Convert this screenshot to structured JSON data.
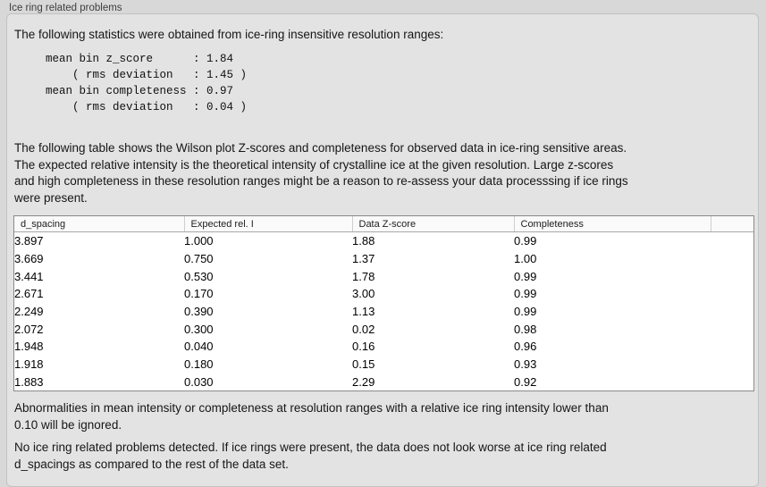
{
  "panel": {
    "title": "Ice ring related problems"
  },
  "intro": "The following statistics were obtained from ice-ring insensitive resolution ranges:",
  "stats_block": "mean bin z_score      : 1.84\n    ( rms deviation   : 1.45 )\nmean bin completeness : 0.97\n    ( rms deviation   : 0.04 )",
  "stats": {
    "mean_bin_z_score": "1.84",
    "z_score_rms_deviation": "1.45",
    "mean_bin_completeness": "0.97",
    "completeness_rms_deviation": "0.04"
  },
  "table_description": "The following table shows the Wilson plot Z-scores and completeness for observed data in ice-ring sensitive areas.\nThe expected relative intensity is the theoretical intensity of crystalline ice at the given resolution. Large z-scores\nand high completeness in these resolution ranges might be a reason to re-assess your data processsing if ice rings\nwere present.",
  "table": {
    "columns": [
      "d_spacing",
      "Expected rel. I",
      "Data Z-score",
      "Completeness",
      ""
    ],
    "rows": [
      [
        "3.897",
        "1.000",
        "1.88",
        "0.99"
      ],
      [
        "3.669",
        "0.750",
        "1.37",
        "1.00"
      ],
      [
        "3.441",
        "0.530",
        "1.78",
        "0.99"
      ],
      [
        "2.671",
        "0.170",
        "3.00",
        "0.99"
      ],
      [
        "2.249",
        "0.390",
        "1.13",
        "0.99"
      ],
      [
        "2.072",
        "0.300",
        "0.02",
        "0.98"
      ],
      [
        "1.948",
        "0.040",
        "0.16",
        "0.96"
      ],
      [
        "1.918",
        "0.180",
        "0.15",
        "0.93"
      ],
      [
        "1.883",
        "0.030",
        "2.29",
        "0.92"
      ]
    ]
  },
  "ignore_note": "Abnormalities in mean intensity or completeness at resolution ranges with a relative ice ring intensity lower than\n0.10 will be ignored.",
  "conclusion": "No ice ring related problems detected. If ice rings were present, the data does not look worse at ice ring related\nd_spacings as compared to the rest of the data set.",
  "colors": {
    "page_background": "#d8d8d8",
    "panel_background": "#e3e3e3",
    "panel_border": "#c2c2c2",
    "table_border": "#8a8a8a",
    "table_background": "#ffffff"
  }
}
